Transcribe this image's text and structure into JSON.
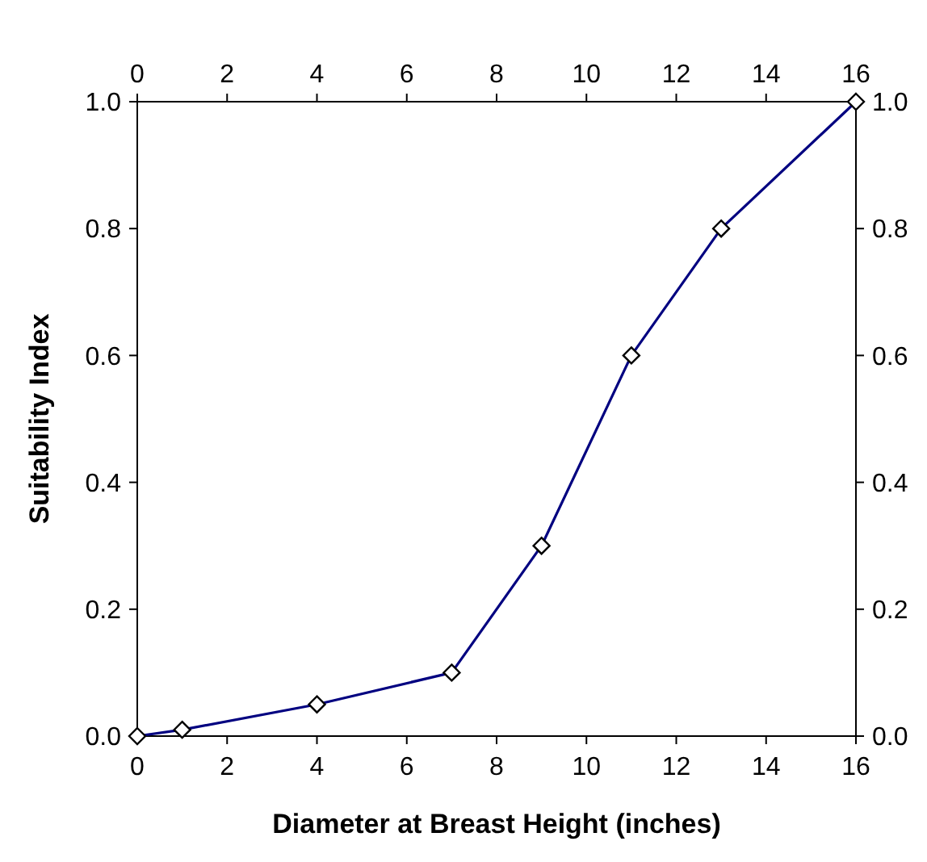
{
  "chart_data": {
    "type": "line",
    "xlabel": "Diameter at Breast Height (inches)",
    "ylabel": "Suitability Index",
    "x": [
      0,
      1,
      4,
      7,
      9,
      11,
      13,
      16
    ],
    "series": [
      {
        "color": "#000080",
        "values": [
          0,
          0.01,
          0.05,
          0.1,
          0.3,
          0.6,
          0.8,
          1.0
        ]
      }
    ],
    "xlim": [
      0,
      16
    ],
    "xticks": [
      0,
      2,
      4,
      6,
      8,
      10,
      12,
      14,
      16
    ],
    "x2lim": [
      0,
      16
    ],
    "x2ticks": [
      0,
      2,
      4,
      6,
      8,
      10,
      12,
      14,
      16
    ],
    "ylim": [
      0,
      1
    ],
    "yticks": [
      {
        "value": 0,
        "label": "0.0"
      },
      {
        "value": 0.2,
        "label": "0.2"
      },
      {
        "value": 0.4,
        "label": "0.4"
      },
      {
        "value": 0.6,
        "label": "0.6"
      },
      {
        "value": 0.8,
        "label": "0.8"
      },
      {
        "value": 1,
        "label": "1.0"
      }
    ],
    "y2lim": [
      0,
      1
    ],
    "y2ticks": [
      {
        "value": 0,
        "label": "0.0"
      },
      {
        "value": 0.2,
        "label": "0.2"
      },
      {
        "value": 0.4,
        "label": "0.4"
      },
      {
        "value": 0.6,
        "label": "0.6"
      },
      {
        "value": 0.8,
        "label": "0.8"
      },
      {
        "value": 1,
        "label": "1.0"
      }
    ],
    "marker": "diamond",
    "line_style": "solid"
  }
}
